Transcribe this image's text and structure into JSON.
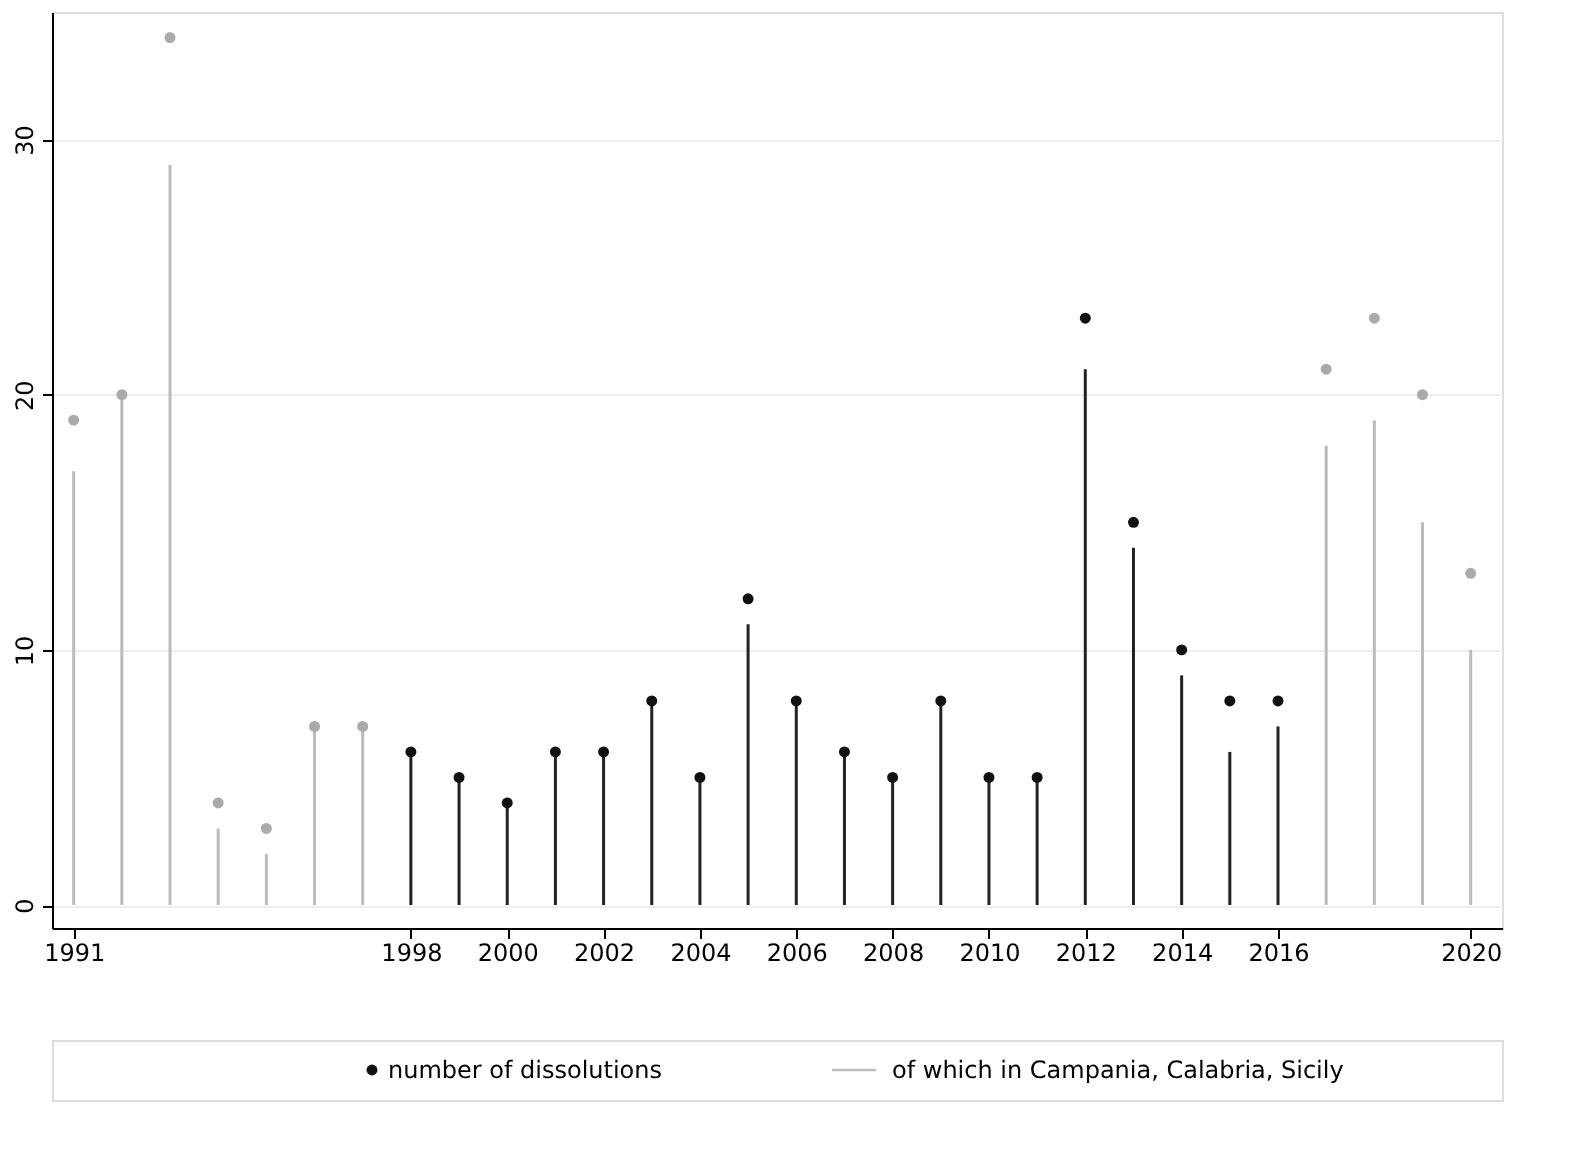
{
  "chart_data": {
    "type": "bar",
    "x": [
      1991,
      1992,
      1993,
      1994,
      1995,
      1996,
      1997,
      1998,
      1999,
      2000,
      2001,
      2002,
      2003,
      2004,
      2005,
      2006,
      2007,
      2008,
      2009,
      2010,
      2011,
      2012,
      2013,
      2014,
      2015,
      2016,
      2017,
      2018,
      2019,
      2020
    ],
    "series": [
      {
        "name": "number of dissolutions",
        "type": "scatter",
        "color": "#111111",
        "colors": [
          "#aaaaaa",
          "#aaaaaa",
          "#aaaaaa",
          "#aaaaaa",
          "#aaaaaa",
          "#aaaaaa",
          "#aaaaaa",
          "#111111",
          "#111111",
          "#111111",
          "#111111",
          "#111111",
          "#111111",
          "#111111",
          "#111111",
          "#111111",
          "#111111",
          "#111111",
          "#111111",
          "#111111",
          "#111111",
          "#111111",
          "#111111",
          "#111111",
          "#111111",
          "#111111",
          "#aaaaaa",
          "#aaaaaa",
          "#aaaaaa",
          "#aaaaaa"
        ],
        "values": [
          19,
          20,
          34,
          4,
          3,
          7,
          7,
          6,
          5,
          4,
          6,
          6,
          8,
          5,
          12,
          8,
          6,
          5,
          8,
          5,
          5,
          23,
          15,
          10,
          8,
          8,
          21,
          23,
          20,
          13
        ]
      },
      {
        "name": "of which in Campania, Calabria, Sicily",
        "color": "#bbbbbb",
        "colors": [
          "#bbbbbb",
          "#bbbbbb",
          "#bbbbbb",
          "#bbbbbb",
          "#bbbbbb",
          "#bbbbbb",
          "#bbbbbb",
          "#222222",
          "#222222",
          "#222222",
          "#222222",
          "#222222",
          "#222222",
          "#222222",
          "#222222",
          "#222222",
          "#222222",
          "#222222",
          "#222222",
          "#222222",
          "#222222",
          "#222222",
          "#222222",
          "#222222",
          "#222222",
          "#222222",
          "#bbbbbb",
          "#bbbbbb",
          "#bbbbbb",
          "#bbbbbb"
        ],
        "values": [
          17,
          20,
          29,
          3,
          2,
          7,
          7,
          6,
          5,
          4,
          6,
          6,
          8,
          5,
          11,
          8,
          6,
          5,
          8,
          5,
          5,
          21,
          14,
          9,
          6,
          7,
          18,
          19,
          15,
          10
        ]
      }
    ],
    "xlim": [
      1990.55,
      2020.65
    ],
    "xticks": [
      1991,
      1998,
      2000,
      2002,
      2004,
      2006,
      2008,
      2010,
      2012,
      2014,
      2016,
      2020
    ],
    "ylim": [
      -0.9,
      35
    ],
    "yticks": [
      0,
      10,
      20,
      30
    ],
    "grid": "y",
    "legend": "bottom"
  }
}
